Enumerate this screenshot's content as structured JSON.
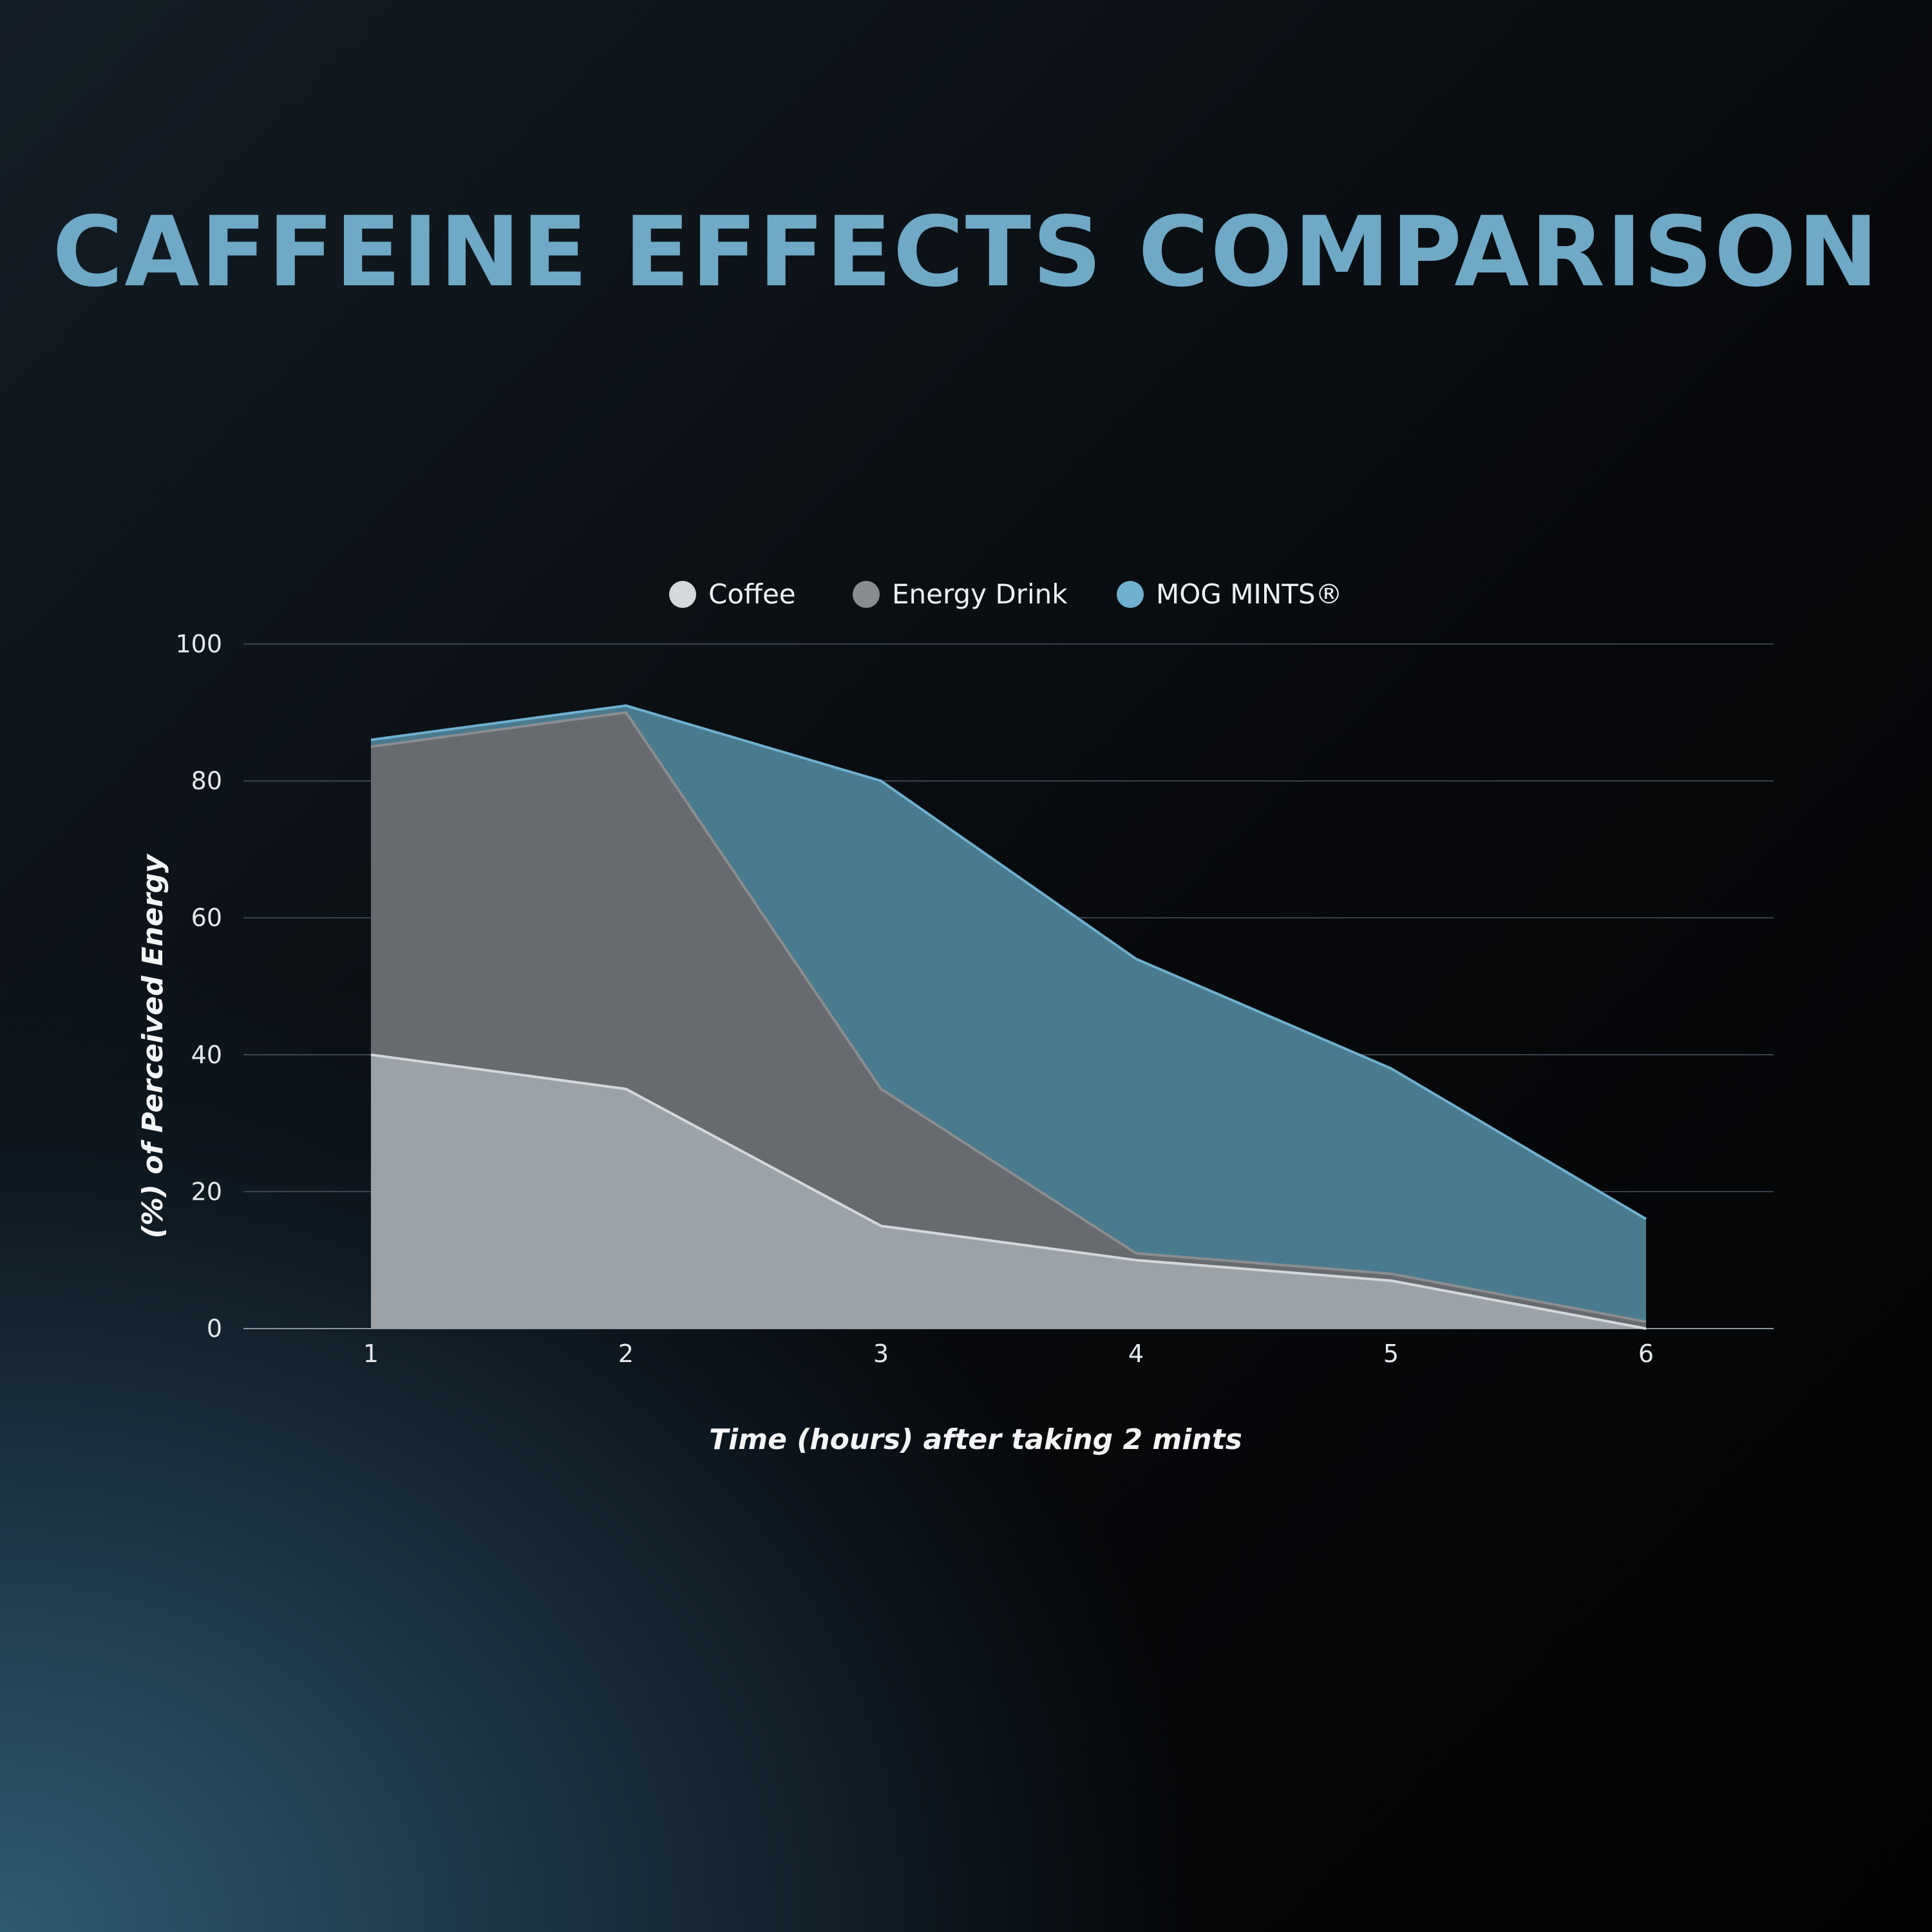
{
  "chart_data": {
    "type": "area",
    "title": "CAFFEINE EFFECTS COMPARISON",
    "xlabel": "Time (hours) after taking 2 mints",
    "ylabel": "(%) of Perceived Energy",
    "x": [
      1,
      2,
      3,
      4,
      5,
      6
    ],
    "xticks": [
      "1",
      "2",
      "3",
      "4",
      "5",
      "6"
    ],
    "yticks": [
      "0",
      "20",
      "40",
      "60",
      "80",
      "100"
    ],
    "xlim": [
      0.5,
      6.5
    ],
    "ylim": [
      0,
      100
    ],
    "grid": true,
    "legend_position": "top-center",
    "series": [
      {
        "name": "Coffee",
        "values": [
          40,
          35,
          15,
          10,
          7,
          0
        ],
        "color": "#d5d8db"
      },
      {
        "name": "Energy Drink",
        "values": [
          85,
          90,
          35,
          11,
          8,
          1
        ],
        "color": "#8a8d90"
      },
      {
        "name": "MOG MINTS®",
        "values": [
          86,
          91,
          80,
          54,
          38,
          16
        ],
        "color": "#6fb0cf"
      }
    ],
    "colors": {
      "title": "#6fa9c6",
      "coffee_fill": "#9ca3a8",
      "energy_fill": "#676b70",
      "mog_fill": "#4a7a8d",
      "grid": "#4a5560"
    }
  }
}
